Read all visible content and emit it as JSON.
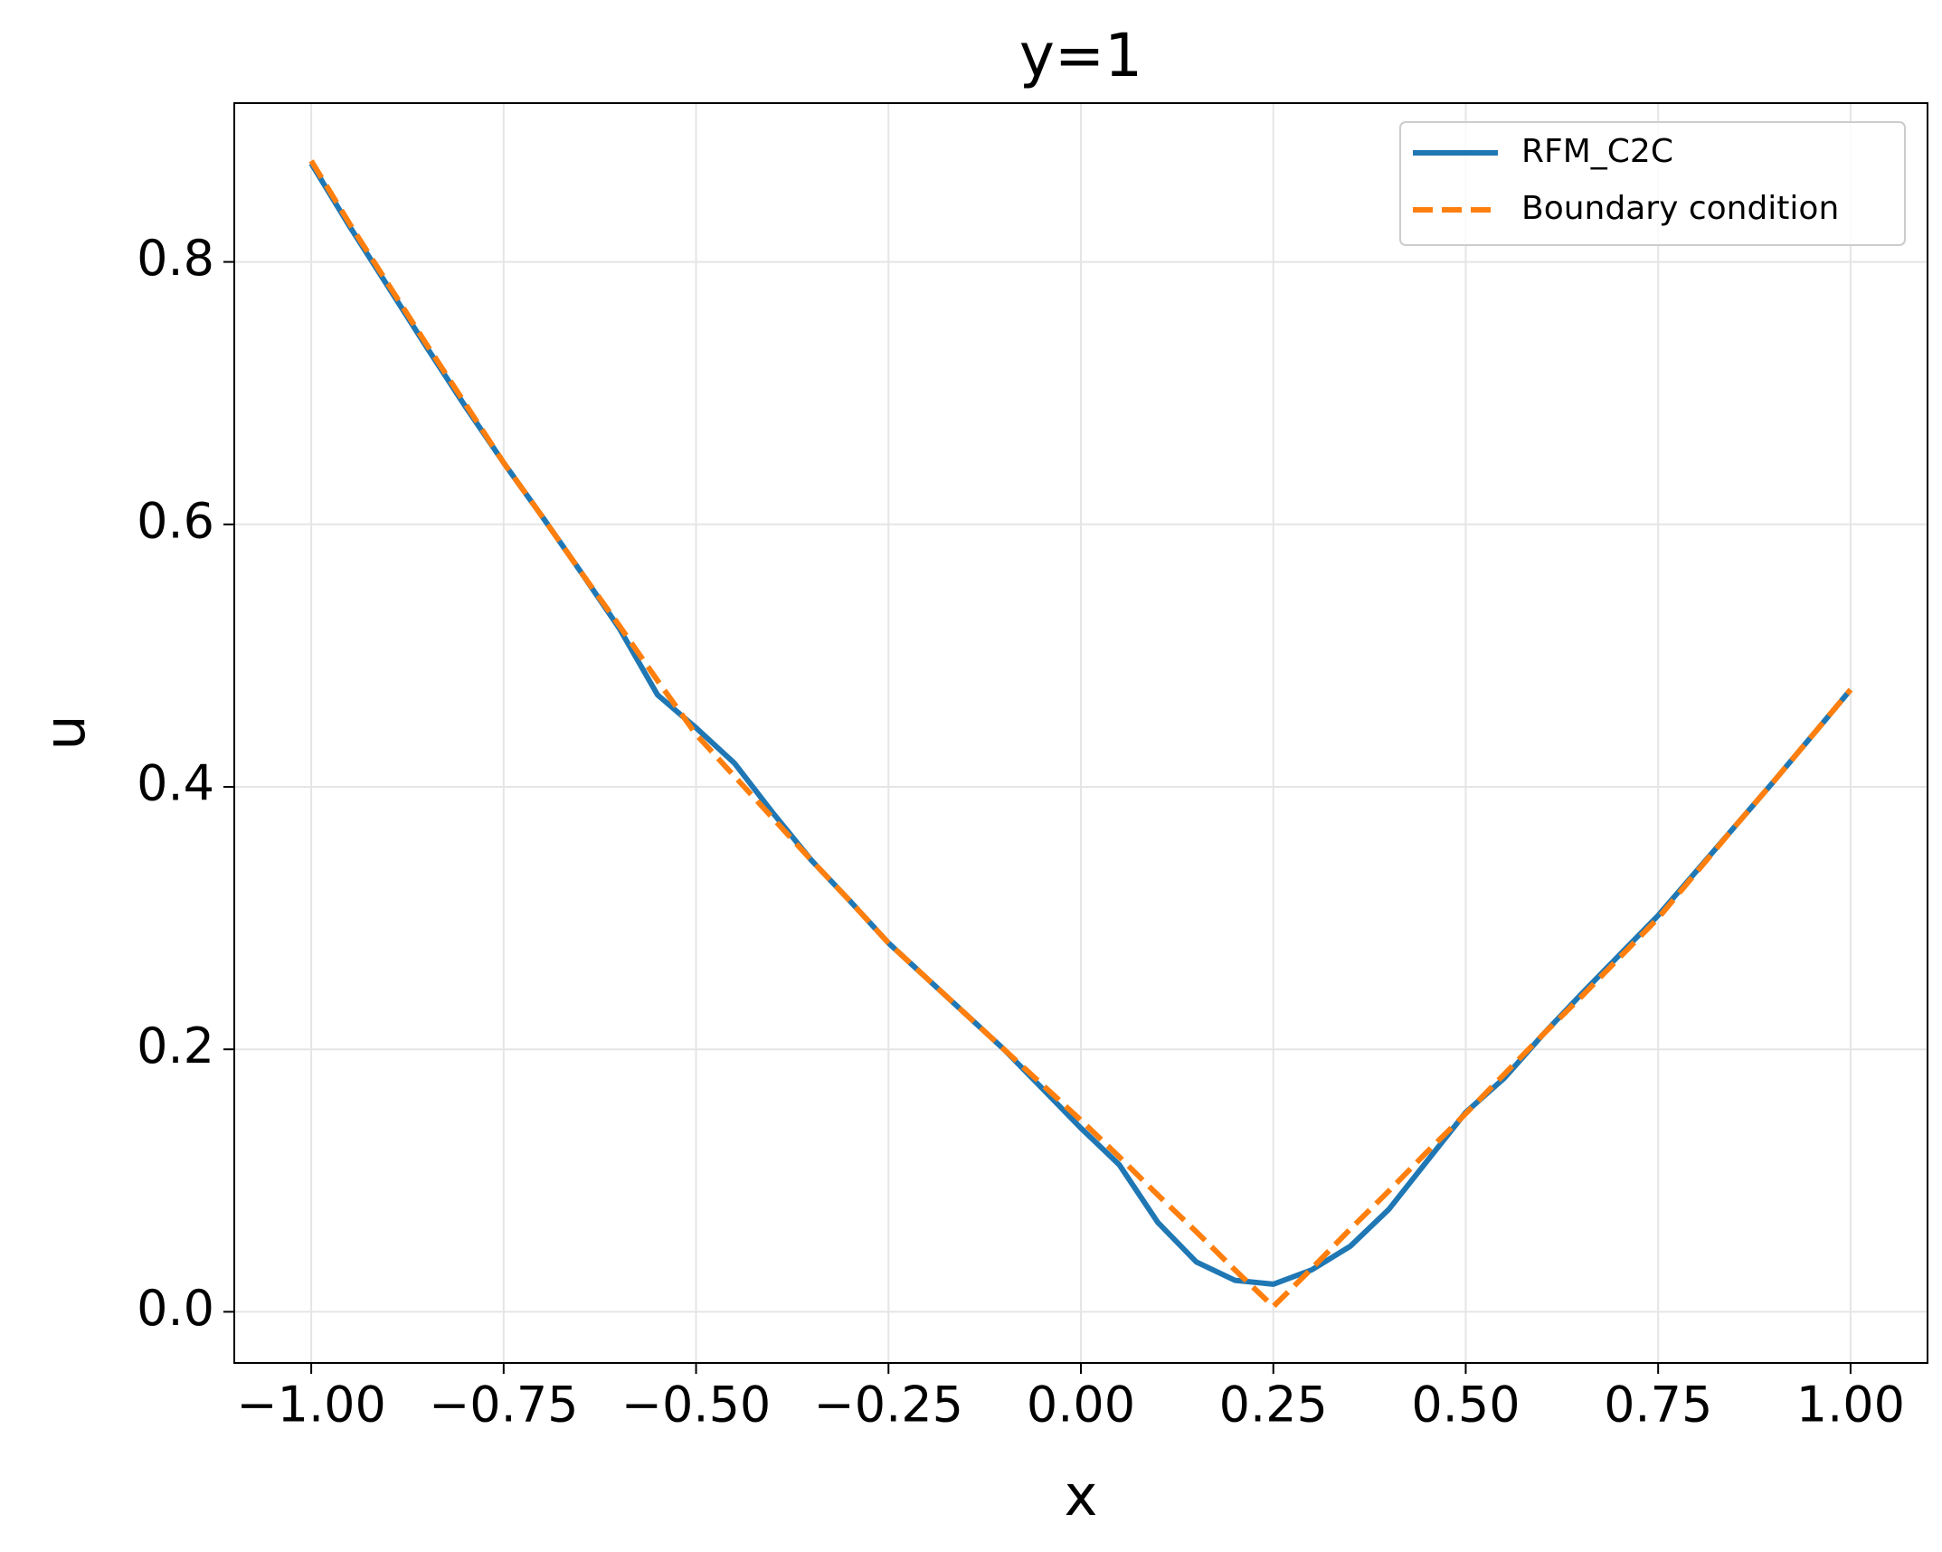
{
  "chart_data": {
    "type": "line",
    "title": "y=1",
    "x_label": "x",
    "y_label": "u",
    "x": [
      -1.0,
      -0.95,
      -0.9,
      -0.85,
      -0.8,
      -0.75,
      -0.7,
      -0.65,
      -0.6,
      -0.55,
      -0.5,
      -0.45,
      -0.4,
      -0.35,
      -0.3,
      -0.25,
      -0.2,
      -0.15,
      -0.1,
      -0.05,
      0.0,
      0.05,
      0.1,
      0.15,
      0.2,
      0.25,
      0.3,
      0.35,
      0.4,
      0.45,
      0.5,
      0.55,
      0.6,
      0.65,
      0.7,
      0.75,
      0.8,
      0.85,
      0.9,
      0.95,
      1.0
    ],
    "series": [
      {
        "name": "RFM_C2C",
        "color": "#1f77b4",
        "dash": false,
        "values": [
          0.875,
          0.827,
          0.781,
          0.735,
          0.69,
          0.647,
          0.606,
          0.564,
          0.521,
          0.47,
          0.445,
          0.418,
          0.38,
          0.344,
          0.313,
          0.281,
          0.254,
          0.227,
          0.2,
          0.17,
          0.14,
          0.112,
          0.068,
          0.038,
          0.024,
          0.021,
          0.032,
          0.05,
          0.078,
          0.115,
          0.152,
          0.178,
          0.211,
          0.242,
          0.272,
          0.302,
          0.336,
          0.37,
          0.404,
          0.439,
          0.474
        ]
      },
      {
        "name": "Boundary condition",
        "color": "#ff7f0e",
        "dash": true,
        "values": [
          0.877,
          0.829,
          0.783,
          0.737,
          0.692,
          0.647,
          0.606,
          0.564,
          0.523,
          0.481,
          0.44,
          0.408,
          0.376,
          0.344,
          0.313,
          0.281,
          0.254,
          0.227,
          0.2,
          0.173,
          0.146,
          0.118,
          0.089,
          0.061,
          0.032,
          0.004,
          0.033,
          0.063,
          0.092,
          0.122,
          0.151,
          0.181,
          0.211,
          0.24,
          0.27,
          0.3,
          0.335,
          0.37,
          0.404,
          0.439,
          0.474
        ]
      }
    ],
    "xlim": [
      -1.1,
      1.1
    ],
    "ylim": [
      -0.039,
      0.921
    ],
    "xticks": [
      {
        "value": -1,
        "label": "−1.00"
      },
      {
        "value": -0.75,
        "label": "−0.75"
      },
      {
        "value": -0.5,
        "label": "−0.50"
      },
      {
        "value": -0.25,
        "label": "−0.25"
      },
      {
        "value": 0,
        "label": "0.00"
      },
      {
        "value": 0.25,
        "label": "0.25"
      },
      {
        "value": 0.5,
        "label": "0.50"
      },
      {
        "value": 0.75,
        "label": "0.75"
      },
      {
        "value": 1,
        "label": "1.00"
      }
    ],
    "yticks": [
      {
        "value": 0,
        "label": "0.0"
      },
      0.2,
      0.4,
      0.6,
      0.8
    ],
    "grid": true,
    "legend": "upper right"
  }
}
